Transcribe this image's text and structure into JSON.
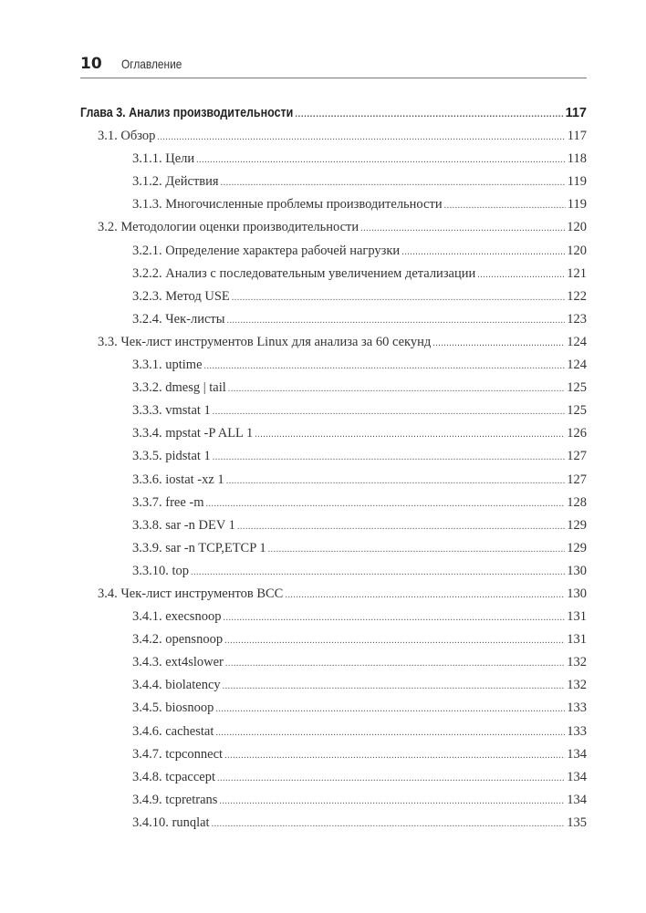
{
  "header": {
    "page_number": "10",
    "title": "Оглавление"
  },
  "toc": [
    {
      "level": 1,
      "label": "Глава 3. Анализ производительности",
      "page": "117"
    },
    {
      "level": 2,
      "label": "3.1. Обзор",
      "page": "117"
    },
    {
      "level": 3,
      "label": "3.1.1. Цели",
      "page": "118"
    },
    {
      "level": 3,
      "label": "3.1.2. Действия",
      "page": "119"
    },
    {
      "level": 3,
      "label": "3.1.3. Многочисленные проблемы производительности",
      "page": "119"
    },
    {
      "level": 2,
      "label": "3.2. Методологии оценки производительности",
      "page": "120"
    },
    {
      "level": 3,
      "label": "3.2.1. Определение характера рабочей нагрузки",
      "page": "120"
    },
    {
      "level": 3,
      "label": "3.2.2. Анализ с последовательным увеличением детализации",
      "page": "121"
    },
    {
      "level": 3,
      "label": "3.2.3. Метод USE",
      "page": "122"
    },
    {
      "level": 3,
      "label": "3.2.4. Чек-листы",
      "page": "123"
    },
    {
      "level": 2,
      "label": "3.3. Чек-лист инструментов Linux для анализа за 60 секунд",
      "page": "124"
    },
    {
      "level": 3,
      "label": "3.3.1. uptime",
      "page": "124"
    },
    {
      "level": 3,
      "label": "3.3.2. dmesg | tail",
      "page": "125"
    },
    {
      "level": 3,
      "label": "3.3.3. vmstat 1",
      "page": "125"
    },
    {
      "level": 3,
      "label": "3.3.4. mpstat -P ALL 1",
      "page": "126"
    },
    {
      "level": 3,
      "label": "3.3.5. pidstat 1",
      "page": "127"
    },
    {
      "level": 3,
      "label": "3.3.6. iostat -xz 1",
      "page": "127"
    },
    {
      "level": 3,
      "label": "3.3.7. free -m",
      "page": "128"
    },
    {
      "level": 3,
      "label": "3.3.8. sar -n DEV 1",
      "page": "129"
    },
    {
      "level": 3,
      "label": "3.3.9. sar -n TCP,ETCP 1",
      "page": "129"
    },
    {
      "level": 3,
      "label": "3.3.10. top",
      "page": "130"
    },
    {
      "level": 2,
      "label": "3.4. Чек-лист инструментов BCC",
      "page": "130"
    },
    {
      "level": 3,
      "label": "3.4.1. execsnoop",
      "page": "131"
    },
    {
      "level": 3,
      "label": "3.4.2. opensnoop",
      "page": "131"
    },
    {
      "level": 3,
      "label": "3.4.3. ext4slower",
      "page": "132"
    },
    {
      "level": 3,
      "label": "3.4.4. biolatency",
      "page": "132"
    },
    {
      "level": 3,
      "label": "3.4.5. biosnoop",
      "page": "133"
    },
    {
      "level": 3,
      "label": "3.4.6. cachestat",
      "page": "133"
    },
    {
      "level": 3,
      "label": "3.4.7. tcpconnect",
      "page": "134"
    },
    {
      "level": 3,
      "label": "3.4.8. tcpaccept",
      "page": "134"
    },
    {
      "level": 3,
      "label": "3.4.9. tcpretrans",
      "page": "134"
    },
    {
      "level": 3,
      "label": "3.4.10. runqlat",
      "page": "135"
    }
  ]
}
